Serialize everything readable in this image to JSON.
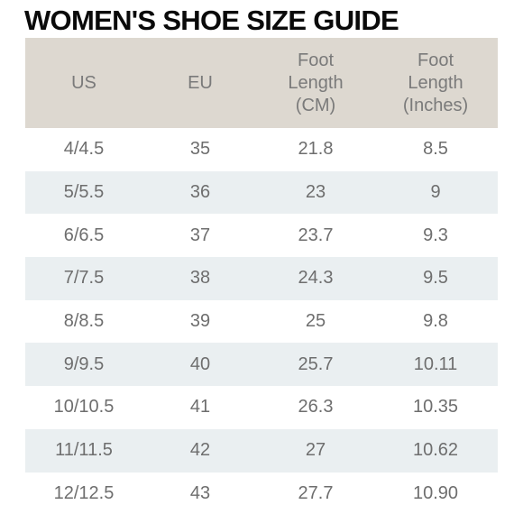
{
  "title": "WOMEN'S SHOE SIZE GUIDE",
  "table": {
    "headers": [
      "US",
      "EU",
      "Foot\nLength\n(CM)",
      "Foot\nLength\n(Inches)"
    ],
    "rows": [
      [
        "4/4.5",
        "35",
        "21.8",
        "8.5"
      ],
      [
        "5/5.5",
        "36",
        "23",
        "9"
      ],
      [
        "6/6.5",
        "37",
        "23.7",
        "9.3"
      ],
      [
        "7/7.5",
        "38",
        "24.3",
        "9.5"
      ],
      [
        "8/8.5",
        "39",
        "25",
        "9.8"
      ],
      [
        "9/9.5",
        "40",
        "25.7",
        "10.11"
      ],
      [
        "10/10.5",
        "41",
        "26.3",
        "10.35"
      ],
      [
        "11/11.5",
        "42",
        "27",
        "10.62"
      ],
      [
        "12/12.5",
        "43",
        "27.7",
        "10.90"
      ]
    ]
  },
  "colors": {
    "header_bg": "#ddd8d0",
    "stripe_bg": "#eaeff1",
    "text": "#6e6e6e",
    "title": "#0a0a0a"
  }
}
